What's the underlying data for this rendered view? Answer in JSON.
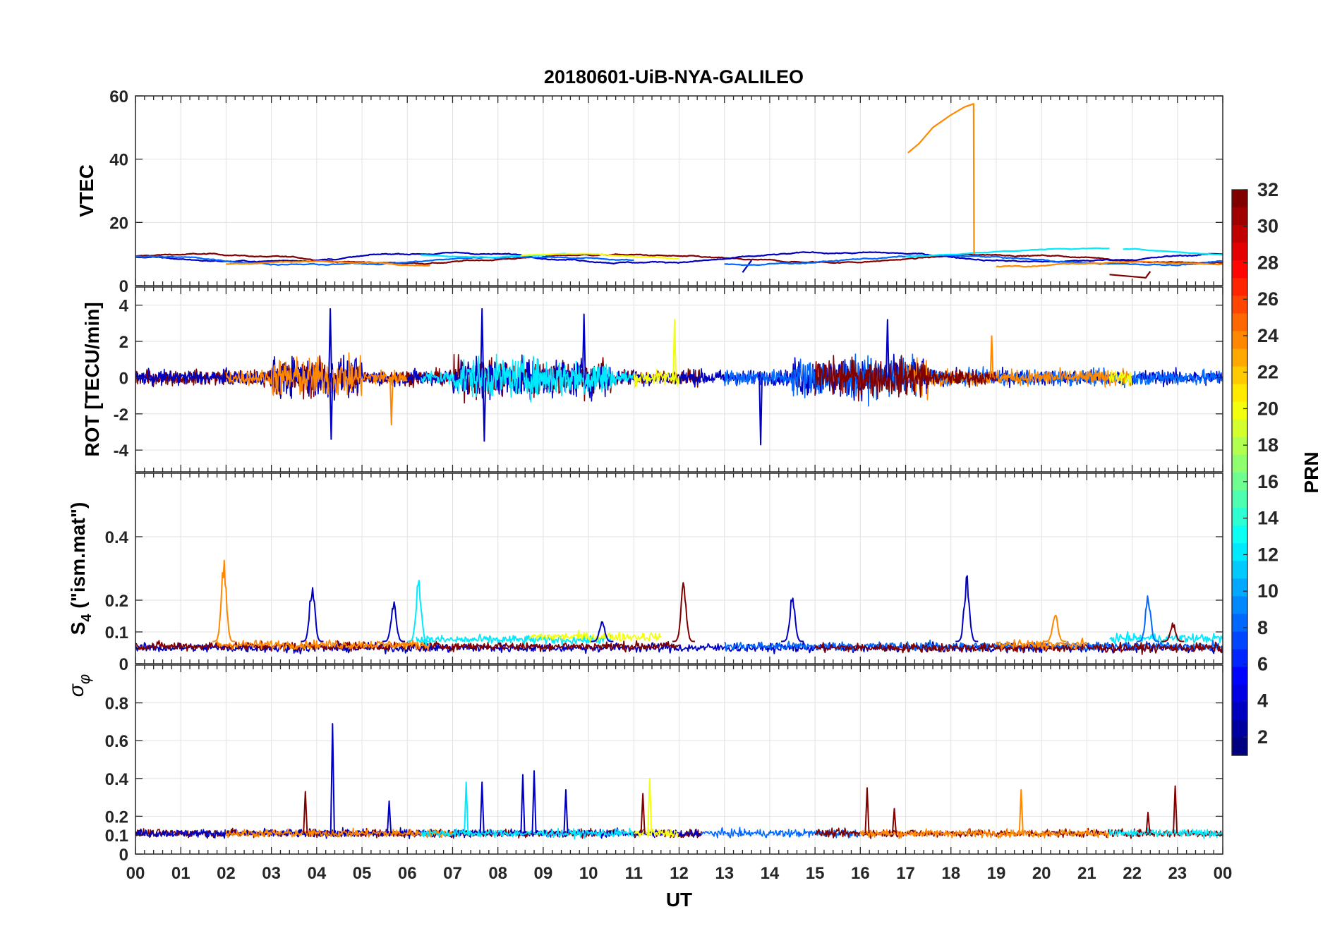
{
  "figure": {
    "title": "20180601-UiB-NYA-GALILEO"
  },
  "chart_data": [
    {
      "type": "line",
      "panel": "vtec",
      "ylabel": "VTEC",
      "ylim": [
        0,
        60
      ],
      "yticks": [
        0,
        20,
        40,
        60
      ],
      "grid": true,
      "series": [
        {
          "color_index": 32,
          "baseline": 8.5,
          "noise": 1.2,
          "segments": [
            [
              0,
              24
            ]
          ],
          "points": [
            [
              21.5,
              3.5
            ],
            [
              22.3,
              2.5
            ],
            [
              22.4,
              4.5
            ]
          ]
        },
        {
          "color_index": 3,
          "baseline": 9.0,
          "noise": 1.3,
          "segments": [
            [
              0,
              24
            ]
          ],
          "points": [
            [
              13.4,
              4.2
            ],
            [
              13.6,
              8.0
            ]
          ]
        },
        {
          "color_index": 8,
          "baseline": 8.0,
          "noise": 1.2,
          "segments": [
            [
              0,
              11
            ],
            [
              13,
              24
            ]
          ]
        },
        {
          "color_index": 12,
          "baseline": 10.5,
          "noise": 0.6,
          "segments": [
            [
              6.3,
              9.5
            ],
            [
              17,
              21.5
            ],
            [
              21.8,
              24
            ]
          ]
        },
        {
          "color_index": 24,
          "baseline": 6.5,
          "noise": 1.0,
          "segments": [
            [
              2,
              6.5
            ],
            [
              19,
              24
            ]
          ]
        },
        {
          "color_index": 20,
          "baseline": 8.5,
          "noise": 0.7,
          "segments": [
            [
              8.5,
              12
            ]
          ]
        },
        {
          "color_index": 24,
          "points": [
            [
              17.05,
              42
            ],
            [
              17.3,
              45
            ],
            [
              17.6,
              50
            ],
            [
              18.0,
              54
            ],
            [
              18.3,
              56.5
            ],
            [
              18.5,
              57.5
            ],
            [
              18.51,
              10
            ]
          ]
        }
      ]
    },
    {
      "type": "line",
      "panel": "rot",
      "ylabel": "ROT [TECU/min]",
      "ylim": [
        -5.2,
        5
      ],
      "yticks": [
        -4,
        -2,
        0,
        2,
        4
      ],
      "grid": true,
      "spikes": [
        {
          "x": 4.3,
          "y": 3.8,
          "color_index": 3
        },
        {
          "x": 4.32,
          "y": -3.4,
          "color_index": 3
        },
        {
          "x": 7.65,
          "y": 3.8,
          "color_index": 3
        },
        {
          "x": 7.7,
          "y": -3.5,
          "color_index": 3
        },
        {
          "x": 9.9,
          "y": 3.5,
          "color_index": 3
        },
        {
          "x": 13.8,
          "y": -3.7,
          "color_index": 3
        },
        {
          "x": 11.9,
          "y": 3.2,
          "color_index": 20
        },
        {
          "x": 16.6,
          "y": 3.2,
          "color_index": 3
        },
        {
          "x": 5.65,
          "y": -2.6,
          "color_index": 24
        },
        {
          "x": 18.9,
          "y": 2.3,
          "color_index": 24
        }
      ]
    },
    {
      "type": "line",
      "panel": "s4",
      "ylabel": "S_4 (\"ism.mat\")",
      "ylim": [
        0,
        0.6
      ],
      "yticks": [
        0,
        0.1,
        0.2,
        0.4
      ],
      "grid": true,
      "peaks": [
        {
          "x": 1.95,
          "y": 0.33,
          "color_index": 24
        },
        {
          "x": 3.9,
          "y": 0.26,
          "color_index": 3
        },
        {
          "x": 5.7,
          "y": 0.2,
          "color_index": 3
        },
        {
          "x": 6.25,
          "y": 0.27,
          "color_index": 12
        },
        {
          "x": 10.3,
          "y": 0.14,
          "color_index": 3
        },
        {
          "x": 12.1,
          "y": 0.27,
          "color_index": 32
        },
        {
          "x": 14.5,
          "y": 0.22,
          "color_index": 3
        },
        {
          "x": 18.35,
          "y": 0.28,
          "color_index": 3
        },
        {
          "x": 20.3,
          "y": 0.17,
          "color_index": 24
        },
        {
          "x": 22.35,
          "y": 0.22,
          "color_index": 8
        },
        {
          "x": 22.9,
          "y": 0.13,
          "color_index": 32
        }
      ]
    },
    {
      "type": "line",
      "panel": "sigma_phi",
      "ylabel": "σ_φ",
      "ylim": [
        0,
        1
      ],
      "yticks": [
        0,
        0.1,
        0.2,
        0.4,
        0.6,
        0.8
      ],
      "grid": true,
      "xlabel": "UT",
      "xlim": [
        0,
        24
      ],
      "xticklabels": [
        "00",
        "01",
        "02",
        "03",
        "04",
        "05",
        "06",
        "07",
        "08",
        "09",
        "10",
        "11",
        "12",
        "13",
        "14",
        "15",
        "16",
        "17",
        "18",
        "19",
        "20",
        "21",
        "22",
        "23",
        "00"
      ],
      "peaks": [
        {
          "x": 3.75,
          "y": 0.33,
          "color_index": 32
        },
        {
          "x": 4.35,
          "y": 0.69,
          "color_index": 3
        },
        {
          "x": 5.6,
          "y": 0.28,
          "color_index": 3
        },
        {
          "x": 7.3,
          "y": 0.38,
          "color_index": 12
        },
        {
          "x": 7.65,
          "y": 0.38,
          "color_index": 3
        },
        {
          "x": 8.55,
          "y": 0.42,
          "color_index": 3
        },
        {
          "x": 8.8,
          "y": 0.44,
          "color_index": 3
        },
        {
          "x": 9.5,
          "y": 0.34,
          "color_index": 3
        },
        {
          "x": 11.35,
          "y": 0.4,
          "color_index": 20
        },
        {
          "x": 11.2,
          "y": 0.32,
          "color_index": 32
        },
        {
          "x": 16.15,
          "y": 0.35,
          "color_index": 32
        },
        {
          "x": 16.75,
          "y": 0.24,
          "color_index": 32
        },
        {
          "x": 19.55,
          "y": 0.34,
          "color_index": 24
        },
        {
          "x": 22.35,
          "y": 0.22,
          "color_index": 32
        },
        {
          "x": 22.95,
          "y": 0.36,
          "color_index": 32
        }
      ]
    }
  ],
  "colorbar": {
    "label": "PRN",
    "range": [
      1,
      32
    ],
    "ticks": [
      "2",
      "4",
      "6",
      "8",
      "10",
      "12",
      "14",
      "16",
      "18",
      "20",
      "22",
      "24",
      "26",
      "28",
      "30",
      "32"
    ],
    "colormap": "jet"
  }
}
